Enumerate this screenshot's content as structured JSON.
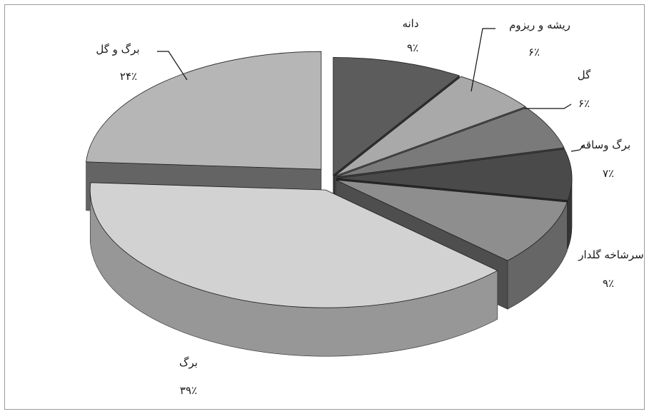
{
  "chart_data": {
    "type": "pie",
    "style": "3d-exploded",
    "legend": "none",
    "slices": [
      {
        "label": "دانه",
        "value": 9,
        "value_label": "۹٪",
        "color": "#5c5c5c"
      },
      {
        "label": "ریشه و ریزوم",
        "value": 6,
        "value_label": "۶٪",
        "color": "#a9a9a9"
      },
      {
        "label": "گل",
        "value": 6,
        "value_label": "۶٪",
        "color": "#7a7a7a"
      },
      {
        "label": "برگ وساقه",
        "value": 7,
        "value_label": "۷٪",
        "color": "#4a4a4a"
      },
      {
        "label": "سرشاخه گلدار",
        "value": 9,
        "value_label": "۹٪",
        "color": "#8e8e8e"
      },
      {
        "label": "برگ",
        "value": 39,
        "value_label": "۳۹٪",
        "color": "#d2d2d2"
      },
      {
        "label": "برگ و گل",
        "value": 24,
        "value_label": "۲۴٪",
        "color": "#b6b6b6"
      }
    ]
  }
}
